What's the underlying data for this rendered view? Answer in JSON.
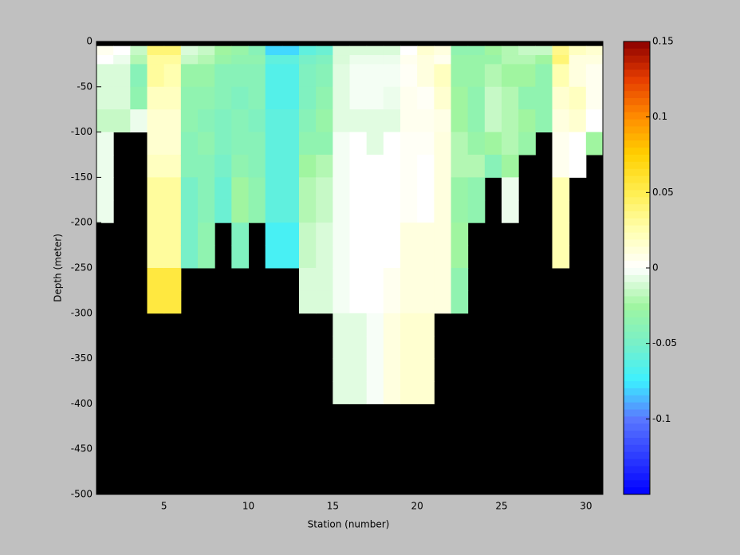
{
  "chart_data": {
    "type": "heatmap",
    "xlabel": "Station (number)",
    "ylabel": "Depth (meter)",
    "xlim": [
      1,
      31
    ],
    "ylim": [
      -500,
      0
    ],
    "xticks": [
      5,
      10,
      15,
      20,
      25,
      30
    ],
    "yticks": [
      0,
      -50,
      -100,
      -150,
      -200,
      -250,
      -300,
      -350,
      -400,
      -450,
      -500
    ],
    "x_edges": [
      1,
      2,
      3,
      4,
      5,
      6,
      7,
      8,
      9,
      10,
      11,
      12,
      13,
      14,
      15,
      16,
      17,
      18,
      19,
      20,
      21,
      22,
      23,
      24,
      25,
      26,
      27,
      28,
      29,
      30,
      31
    ],
    "y_edges": [
      -5,
      -15,
      -25,
      -50,
      -75,
      -100,
      -125,
      -150,
      -175,
      -200,
      -225,
      -250,
      -275,
      -300,
      -325,
      -350,
      -375,
      -400
    ],
    "background": "#000000",
    "clim": [
      -0.15,
      0.15
    ],
    "cticks": [
      -0.1,
      -0.05,
      0,
      0.05,
      0.1,
      0.15
    ],
    "values": [
      [
        0.005,
        0,
        -0.01,
        -0.01,
        -0.015,
        -0.005,
        -0.005,
        -0.005,
        -0.005,
        null,
        null,
        null,
        null,
        null,
        null,
        null,
        null
      ],
      [
        0,
        -0.005,
        -0.01,
        -0.01,
        -0.015,
        null,
        null,
        null,
        null,
        null,
        null,
        null,
        null,
        null,
        null,
        null,
        null
      ],
      [
        -0.015,
        -0.02,
        -0.04,
        -0.035,
        -0.005,
        null,
        null,
        null,
        null,
        null,
        null,
        null,
        null,
        null,
        null,
        null,
        null
      ],
      [
        0.04,
        0.03,
        0.03,
        0.02,
        0.015,
        0.015,
        0.02,
        0.03,
        0.03,
        0.03,
        0.03,
        0.055,
        0.055,
        null,
        null,
        null,
        null
      ],
      [
        0.04,
        0.03,
        0.025,
        0.02,
        0.015,
        0.015,
        0.02,
        0.03,
        0.03,
        0.03,
        0.03,
        0.055,
        0.055,
        null,
        null,
        null,
        null
      ],
      [
        -0.01,
        -0.015,
        -0.03,
        -0.035,
        -0.035,
        -0.04,
        -0.04,
        -0.05,
        -0.05,
        -0.05,
        -0.05,
        null,
        null,
        null,
        null,
        null,
        null
      ],
      [
        -0.015,
        -0.02,
        -0.03,
        -0.035,
        -0.04,
        -0.035,
        -0.04,
        -0.04,
        -0.04,
        -0.035,
        -0.035,
        null,
        null,
        null,
        null,
        null,
        null
      ],
      [
        -0.025,
        -0.03,
        -0.04,
        -0.04,
        -0.045,
        -0.045,
        -0.05,
        -0.055,
        -0.055,
        null,
        null,
        null,
        null,
        null,
        null,
        null,
        null
      ],
      [
        -0.03,
        -0.035,
        -0.04,
        -0.045,
        -0.04,
        -0.04,
        -0.035,
        -0.025,
        -0.025,
        -0.045,
        -0.045,
        null,
        null,
        null,
        null,
        null,
        null
      ],
      [
        -0.04,
        -0.035,
        -0.04,
        -0.04,
        -0.045,
        -0.04,
        -0.04,
        -0.035,
        -0.035,
        null,
        null,
        null,
        null,
        null,
        null,
        null,
        null
      ],
      [
        -0.08,
        -0.06,
        -0.065,
        -0.065,
        -0.06,
        -0.06,
        -0.06,
        -0.06,
        -0.06,
        -0.07,
        -0.07,
        null,
        null,
        null,
        null,
        null,
        null
      ],
      [
        -0.08,
        -0.06,
        -0.065,
        -0.065,
        -0.06,
        -0.06,
        -0.06,
        -0.06,
        -0.06,
        -0.07,
        -0.07,
        null,
        null,
        null,
        null,
        null,
        null
      ],
      [
        -0.06,
        -0.05,
        -0.045,
        -0.045,
        -0.04,
        -0.035,
        -0.025,
        -0.02,
        -0.02,
        -0.015,
        -0.015,
        -0.01,
        -0.01,
        null,
        null,
        null,
        null
      ],
      [
        -0.055,
        -0.045,
        -0.04,
        -0.035,
        -0.03,
        -0.035,
        -0.02,
        -0.015,
        -0.015,
        -0.01,
        -0.01,
        -0.01,
        -0.01,
        null,
        null,
        null,
        null
      ],
      [
        -0.01,
        -0.01,
        -0.008,
        -0.008,
        -0.008,
        -0.003,
        -0.003,
        -0.003,
        -0.003,
        -0.003,
        -0.003,
        -0.003,
        -0.003,
        -0.008,
        -0.008,
        -0.008,
        -0.008
      ],
      [
        -0.01,
        -0.005,
        -0.003,
        -0.003,
        -0.008,
        0,
        0,
        0,
        0,
        0,
        0,
        0,
        0,
        -0.008,
        -0.008,
        -0.008,
        -0.008
      ],
      [
        -0.01,
        -0.005,
        -0.003,
        -0.003,
        -0.008,
        -0.008,
        0,
        0,
        0,
        0,
        0,
        0,
        0,
        -0.002,
        -0.002,
        -0.002,
        -0.002
      ],
      [
        -0.01,
        -0.005,
        -0.003,
        -0.005,
        -0.008,
        0,
        0,
        0,
        0,
        0,
        0,
        0.005,
        0.005,
        0.01,
        0.01,
        0.01,
        0.01
      ],
      [
        0,
        0.005,
        0.003,
        0.005,
        0.005,
        0.003,
        0.003,
        0.003,
        0.003,
        0.01,
        0.01,
        0.01,
        0.01,
        0.015,
        0.015,
        0.015,
        0.015
      ],
      [
        0.015,
        0.01,
        0.01,
        0.003,
        0.005,
        0.003,
        0,
        0,
        0,
        0.01,
        0.01,
        0.01,
        0.01,
        0.015,
        0.015,
        0.015,
        0.015
      ],
      [
        0.01,
        0.005,
        0.02,
        0.015,
        0.008,
        0.01,
        0.01,
        0.01,
        0.01,
        0.01,
        0.01,
        0.01,
        0.01,
        null,
        null,
        null,
        null
      ],
      [
        -0.035,
        -0.03,
        -0.03,
        -0.025,
        -0.025,
        -0.02,
        -0.02,
        -0.03,
        -0.03,
        -0.025,
        -0.025,
        -0.035,
        -0.035,
        null,
        null,
        null,
        null
      ],
      [
        -0.035,
        -0.03,
        -0.03,
        -0.035,
        -0.035,
        -0.03,
        -0.02,
        -0.035,
        -0.035,
        null,
        null,
        null,
        null,
        null,
        null,
        null,
        null
      ],
      [
        -0.025,
        -0.03,
        -0.02,
        -0.015,
        -0.015,
        -0.025,
        -0.04,
        null,
        null,
        null,
        null,
        null,
        null,
        null,
        null,
        null,
        null
      ],
      [
        -0.02,
        -0.02,
        -0.025,
        -0.02,
        -0.02,
        -0.02,
        -0.025,
        -0.005,
        -0.005,
        null,
        null,
        null,
        null,
        null,
        null,
        null,
        null
      ],
      [
        -0.015,
        -0.02,
        -0.025,
        -0.035,
        -0.025,
        -0.03,
        null,
        null,
        null,
        null,
        null,
        null,
        null,
        null,
        null,
        null,
        null
      ],
      [
        -0.015,
        -0.025,
        -0.035,
        -0.035,
        -0.035,
        null,
        null,
        null,
        null,
        null,
        null,
        null,
        null,
        null,
        null,
        null,
        null
      ],
      [
        0.035,
        0.04,
        0.025,
        0.015,
        0.01,
        0.005,
        0.005,
        0.025,
        0.025,
        0.025,
        0.025,
        null,
        null,
        null,
        null,
        null,
        null
      ],
      [
        0.02,
        0.01,
        0.01,
        0.02,
        0.015,
        0,
        0,
        null,
        null,
        null,
        null,
        null,
        null,
        null,
        null,
        null,
        null
      ],
      [
        0.015,
        0.01,
        0.005,
        0.005,
        0,
        -0.025,
        null,
        null,
        null,
        null,
        null,
        null,
        null,
        null,
        null,
        null,
        null
      ]
    ]
  }
}
